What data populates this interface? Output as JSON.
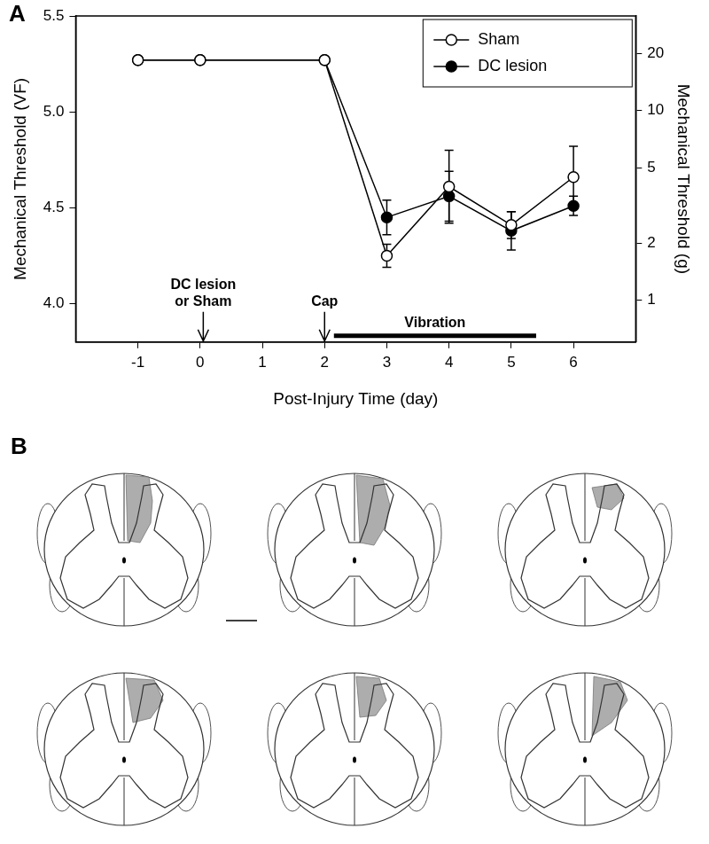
{
  "chart_data": {
    "type": "line",
    "panel_label": "A",
    "x_label": "Post-Injury Time (day)",
    "y_label": "Mechanical Threshold (VF)",
    "y2_label": "Mechanical Threshold (g)",
    "x": [
      -1,
      0,
      2,
      3,
      4,
      5,
      6
    ],
    "xlim": [
      -2,
      7
    ],
    "xticks": [
      -1,
      0,
      1,
      2,
      3,
      4,
      5,
      6
    ],
    "ylim": [
      3.8,
      5.5
    ],
    "yticks": [
      {
        "value": 4,
        "label": "4.0"
      },
      4.5,
      {
        "value": 5,
        "label": "5.0"
      },
      5.5
    ],
    "y2lim": [
      0.631,
      31.62
    ],
    "y2ticks": [
      1,
      2,
      5,
      10,
      20
    ],
    "log": "y2",
    "grid": false,
    "legend": "top right",
    "series": [
      {
        "name": "Sham",
        "color": "#000000",
        "marker": "open circle",
        "line_style": "solid",
        "values": [
          5.27,
          5.27,
          5.27,
          4.25,
          4.61,
          4.41,
          4.66
        ],
        "errors": [
          0,
          0,
          0,
          0.06,
          0.19,
          0.07,
          0.16
        ]
      },
      {
        "name": "DC lesion",
        "color": "#000000",
        "marker": "filled circle",
        "line_style": "solid",
        "values": [
          5.27,
          5.27,
          5.27,
          4.45,
          4.56,
          4.38,
          4.51
        ],
        "errors": [
          0,
          0,
          0,
          0.09,
          0.13,
          0.1,
          0.05
        ]
      }
    ],
    "annotations": [
      {
        "lines": [
          "DC lesion",
          "or Sham"
        ],
        "x": 0.05
      },
      {
        "lines": [
          "Cap"
        ],
        "x": 2
      },
      {
        "lines": [
          "Vibration"
        ],
        "x_range": [
          2.15,
          5.4
        ]
      }
    ]
  },
  "diagram": {
    "panel_label": "B",
    "sections": 6
  }
}
